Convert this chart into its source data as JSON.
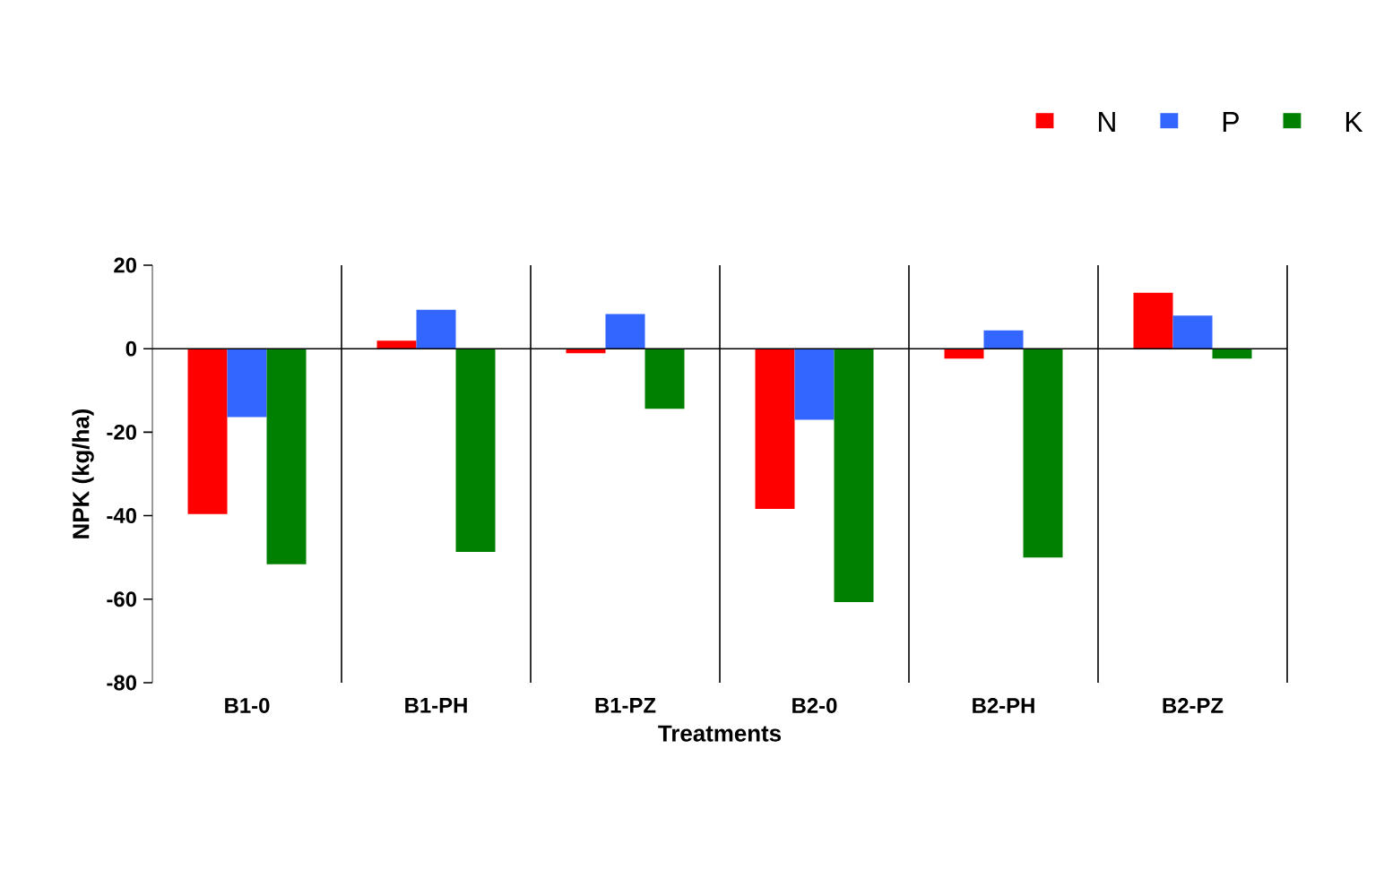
{
  "chart_data": {
    "type": "bar",
    "xlabel": "Treatments",
    "ylabel": "NPK (kg/ha)",
    "categories": [
      "B1-0",
      "B1-PH",
      "B1-PZ",
      "B2-0",
      "B2-PH",
      "B2-PZ"
    ],
    "series": [
      {
        "name": "N",
        "color": "#ff0000",
        "values": [
          -39.6,
          1.9,
          -1.1,
          -38.4,
          -2.4,
          13.4
        ]
      },
      {
        "name": "P",
        "color": "#3366ff",
        "values": [
          -16.4,
          9.3,
          8.3,
          -17,
          4.4,
          7.9
        ]
      },
      {
        "name": "K",
        "color": "#008000",
        "values": [
          -51.6,
          -48.7,
          -14.4,
          -60.7,
          -50,
          -2.4
        ]
      }
    ],
    "ylim": [
      -80,
      20
    ],
    "yticks": [
      -80,
      -60,
      -40,
      -20,
      0,
      20
    ],
    "grid": "x",
    "legend": "top right",
    "ref_lines": [
      {
        "axis": "y",
        "value": 0,
        "color": "#000000"
      }
    ]
  }
}
